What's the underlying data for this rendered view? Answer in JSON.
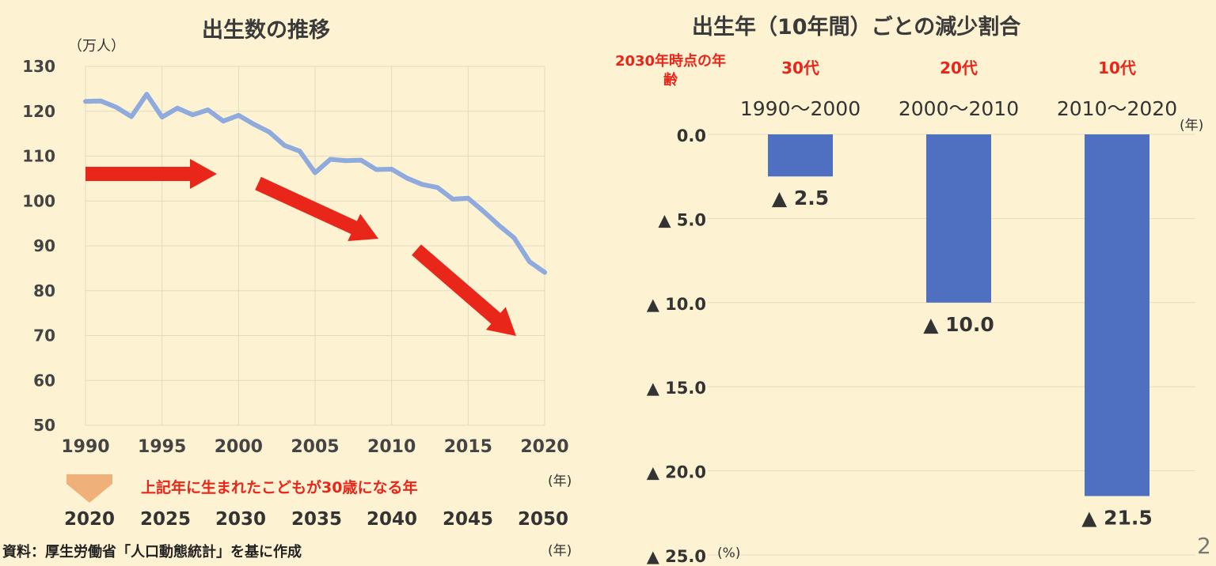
{
  "left": {
    "title": "出生数の推移",
    "y_unit": "（万人）",
    "x_unit": "(年)",
    "future_note": "上記年に生まれたこどもが30歳になる年",
    "future_years": [
      "2020",
      "2025",
      "2030",
      "2035",
      "2040",
      "2045",
      "2050"
    ],
    "future_unit": "(年)",
    "source": "資料：厚生労働省「人口動態統計」を基に作成"
  },
  "right": {
    "title": "出生年（10年間）ごとの減少割合",
    "age_header": "2030年時点の年齢",
    "year_unit": "(年)",
    "y_unit": "(%)",
    "page_number": "2"
  },
  "colors": {
    "background": "#fdf2d2",
    "line": "#8faadc",
    "bar": "#4f70c0",
    "arrow": "#e8261a",
    "highlight": "#e8261a",
    "down_arrow": "#f0b07a"
  },
  "chart_data": [
    {
      "type": "line",
      "title": "出生数の推移",
      "ylabel": "（万人）",
      "xlabel": "(年)",
      "xlim": [
        1990,
        2020
      ],
      "ylim": [
        50,
        130
      ],
      "xticks": [
        1990,
        1995,
        2000,
        2005,
        2010,
        2015,
        2020
      ],
      "yticks": [
        50,
        60,
        70,
        80,
        90,
        100,
        110,
        120,
        130
      ],
      "grid": true,
      "x": [
        1990,
        1991,
        1992,
        1993,
        1994,
        1995,
        1996,
        1997,
        1998,
        1999,
        2000,
        2001,
        2002,
        2003,
        2004,
        2005,
        2006,
        2007,
        2008,
        2009,
        2010,
        2011,
        2012,
        2013,
        2014,
        2015,
        2016,
        2017,
        2018,
        2019,
        2020
      ],
      "values": [
        122.2,
        122.3,
        120.9,
        118.8,
        123.8,
        118.7,
        120.7,
        119.2,
        120.3,
        117.8,
        119.1,
        117.1,
        115.4,
        112.4,
        111.1,
        106.3,
        109.3,
        109.0,
        109.1,
        107.0,
        107.1,
        105.1,
        103.7,
        103.0,
        100.4,
        100.6,
        97.7,
        94.6,
        91.8,
        86.5,
        84.1
      ]
    },
    {
      "type": "bar",
      "title": "出生年（10年間）ごとの減少割合",
      "categories": [
        "1990～2000",
        "2000～2010",
        "2010～2020"
      ],
      "age_labels": [
        "30代",
        "20代",
        "10代"
      ],
      "values": [
        2.5,
        10.0,
        21.5
      ],
      "value_labels": [
        "▲ 2.5",
        "▲ 10.0",
        "▲ 21.5"
      ],
      "ylim": [
        0,
        25
      ],
      "yticks": [
        0,
        5,
        10,
        15,
        20,
        25
      ],
      "ytick_labels": [
        "0.0",
        "▲ 5.0",
        "▲ 10.0",
        "▲ 15.0",
        "▲ 20.0",
        "▲ 25.0"
      ],
      "ylabel": "(%)",
      "grid": true
    }
  ]
}
